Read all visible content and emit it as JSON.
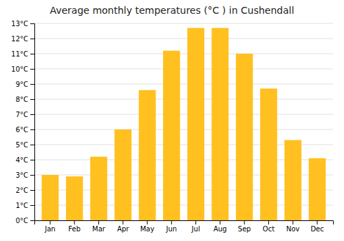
{
  "chart_data": {
    "type": "bar",
    "title": "Average monthly temperatures (°C ) in Cushendall",
    "categories": [
      "Jan",
      "Feb",
      "Mar",
      "Apr",
      "May",
      "Jun",
      "Jul",
      "Aug",
      "Sep",
      "Oct",
      "Nov",
      "Dec"
    ],
    "values": [
      3.0,
      2.9,
      4.2,
      6.0,
      8.6,
      11.2,
      12.7,
      12.7,
      11.0,
      8.7,
      5.3,
      4.1
    ],
    "color": "#FFC020",
    "ylim": [
      0,
      13
    ],
    "yticks": [
      {
        "value": 0,
        "label": "0°C"
      },
      {
        "value": 1,
        "label": "1°C"
      },
      {
        "value": 2,
        "label": "2°C"
      },
      {
        "value": 3,
        "label": "3°C"
      },
      {
        "value": 4,
        "label": "4°C"
      },
      {
        "value": 5,
        "label": "5°C"
      },
      {
        "value": 6,
        "label": "6°C"
      },
      {
        "value": 7,
        "label": "7°C"
      },
      {
        "value": 8,
        "label": "8°C"
      },
      {
        "value": 9,
        "label": "9°C"
      },
      {
        "value": 10,
        "label": "10°C"
      },
      {
        "value": 11,
        "label": "11°C"
      },
      {
        "value": 12,
        "label": "12°C"
      },
      {
        "value": 13,
        "label": "13°C"
      }
    ],
    "grid": true
  }
}
